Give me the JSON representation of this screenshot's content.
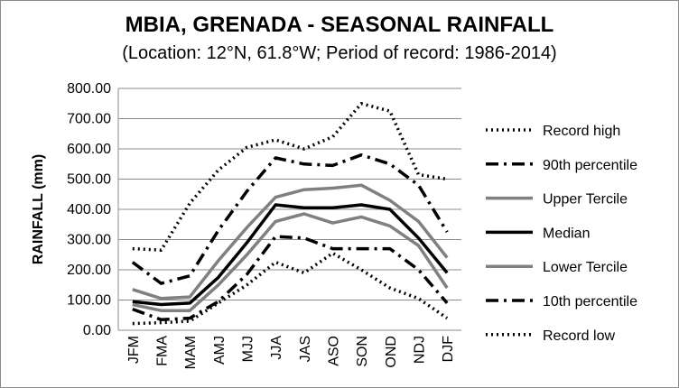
{
  "chart_data": {
    "type": "line",
    "title": "MBIA, GRENADA - SEASONAL RAINFALL",
    "subtitle": "(Location: 12°N, 61.8°W; Period of record: 1986-2014)",
    "xlabel": "",
    "ylabel": "RAINFALL (mm)",
    "ylim": [
      0,
      800
    ],
    "y_ticks": [
      "0.00",
      "100.00",
      "200.00",
      "300.00",
      "400.00",
      "500.00",
      "600.00",
      "700.00",
      "800.00"
    ],
    "categories": [
      "JFM",
      "FMA",
      "MAM",
      "AMJ",
      "MJJ",
      "JJA",
      "JAS",
      "ASO",
      "SON",
      "OND",
      "NDJ",
      "DJF"
    ],
    "grid": "horizontal",
    "legend_position": "right",
    "series": [
      {
        "name": "Record high",
        "style": "dotted",
        "color": "#000000",
        "values": [
          270,
          265,
          420,
          530,
          605,
          630,
          600,
          640,
          750,
          725,
          515,
          500
        ]
      },
      {
        "name": "90th percentile",
        "style": "dashdot",
        "color": "#000000",
        "values": [
          225,
          155,
          180,
          330,
          460,
          570,
          550,
          545,
          580,
          550,
          480,
          325
        ]
      },
      {
        "name": "Upper Tercile",
        "style": "solid",
        "color": "#808080",
        "values": [
          135,
          105,
          110,
          230,
          340,
          440,
          465,
          470,
          480,
          430,
          360,
          240
        ]
      },
      {
        "name": "Median",
        "style": "solid",
        "color": "#000000",
        "values": [
          95,
          85,
          90,
          175,
          290,
          415,
          405,
          405,
          415,
          400,
          305,
          190
        ]
      },
      {
        "name": "Lower Tercile",
        "style": "solid",
        "color": "#808080",
        "values": [
          85,
          65,
          65,
          150,
          250,
          360,
          385,
          355,
          375,
          345,
          280,
          140
        ]
      },
      {
        "name": "10th percentile",
        "style": "dashdot",
        "color": "#000000",
        "values": [
          70,
          35,
          40,
          95,
          185,
          310,
          305,
          270,
          270,
          270,
          200,
          90
        ]
      },
      {
        "name": "Record low",
        "style": "dotted",
        "color": "#000000",
        "values": [
          22,
          25,
          30,
          90,
          150,
          225,
          190,
          255,
          200,
          140,
          105,
          40
        ]
      }
    ]
  }
}
